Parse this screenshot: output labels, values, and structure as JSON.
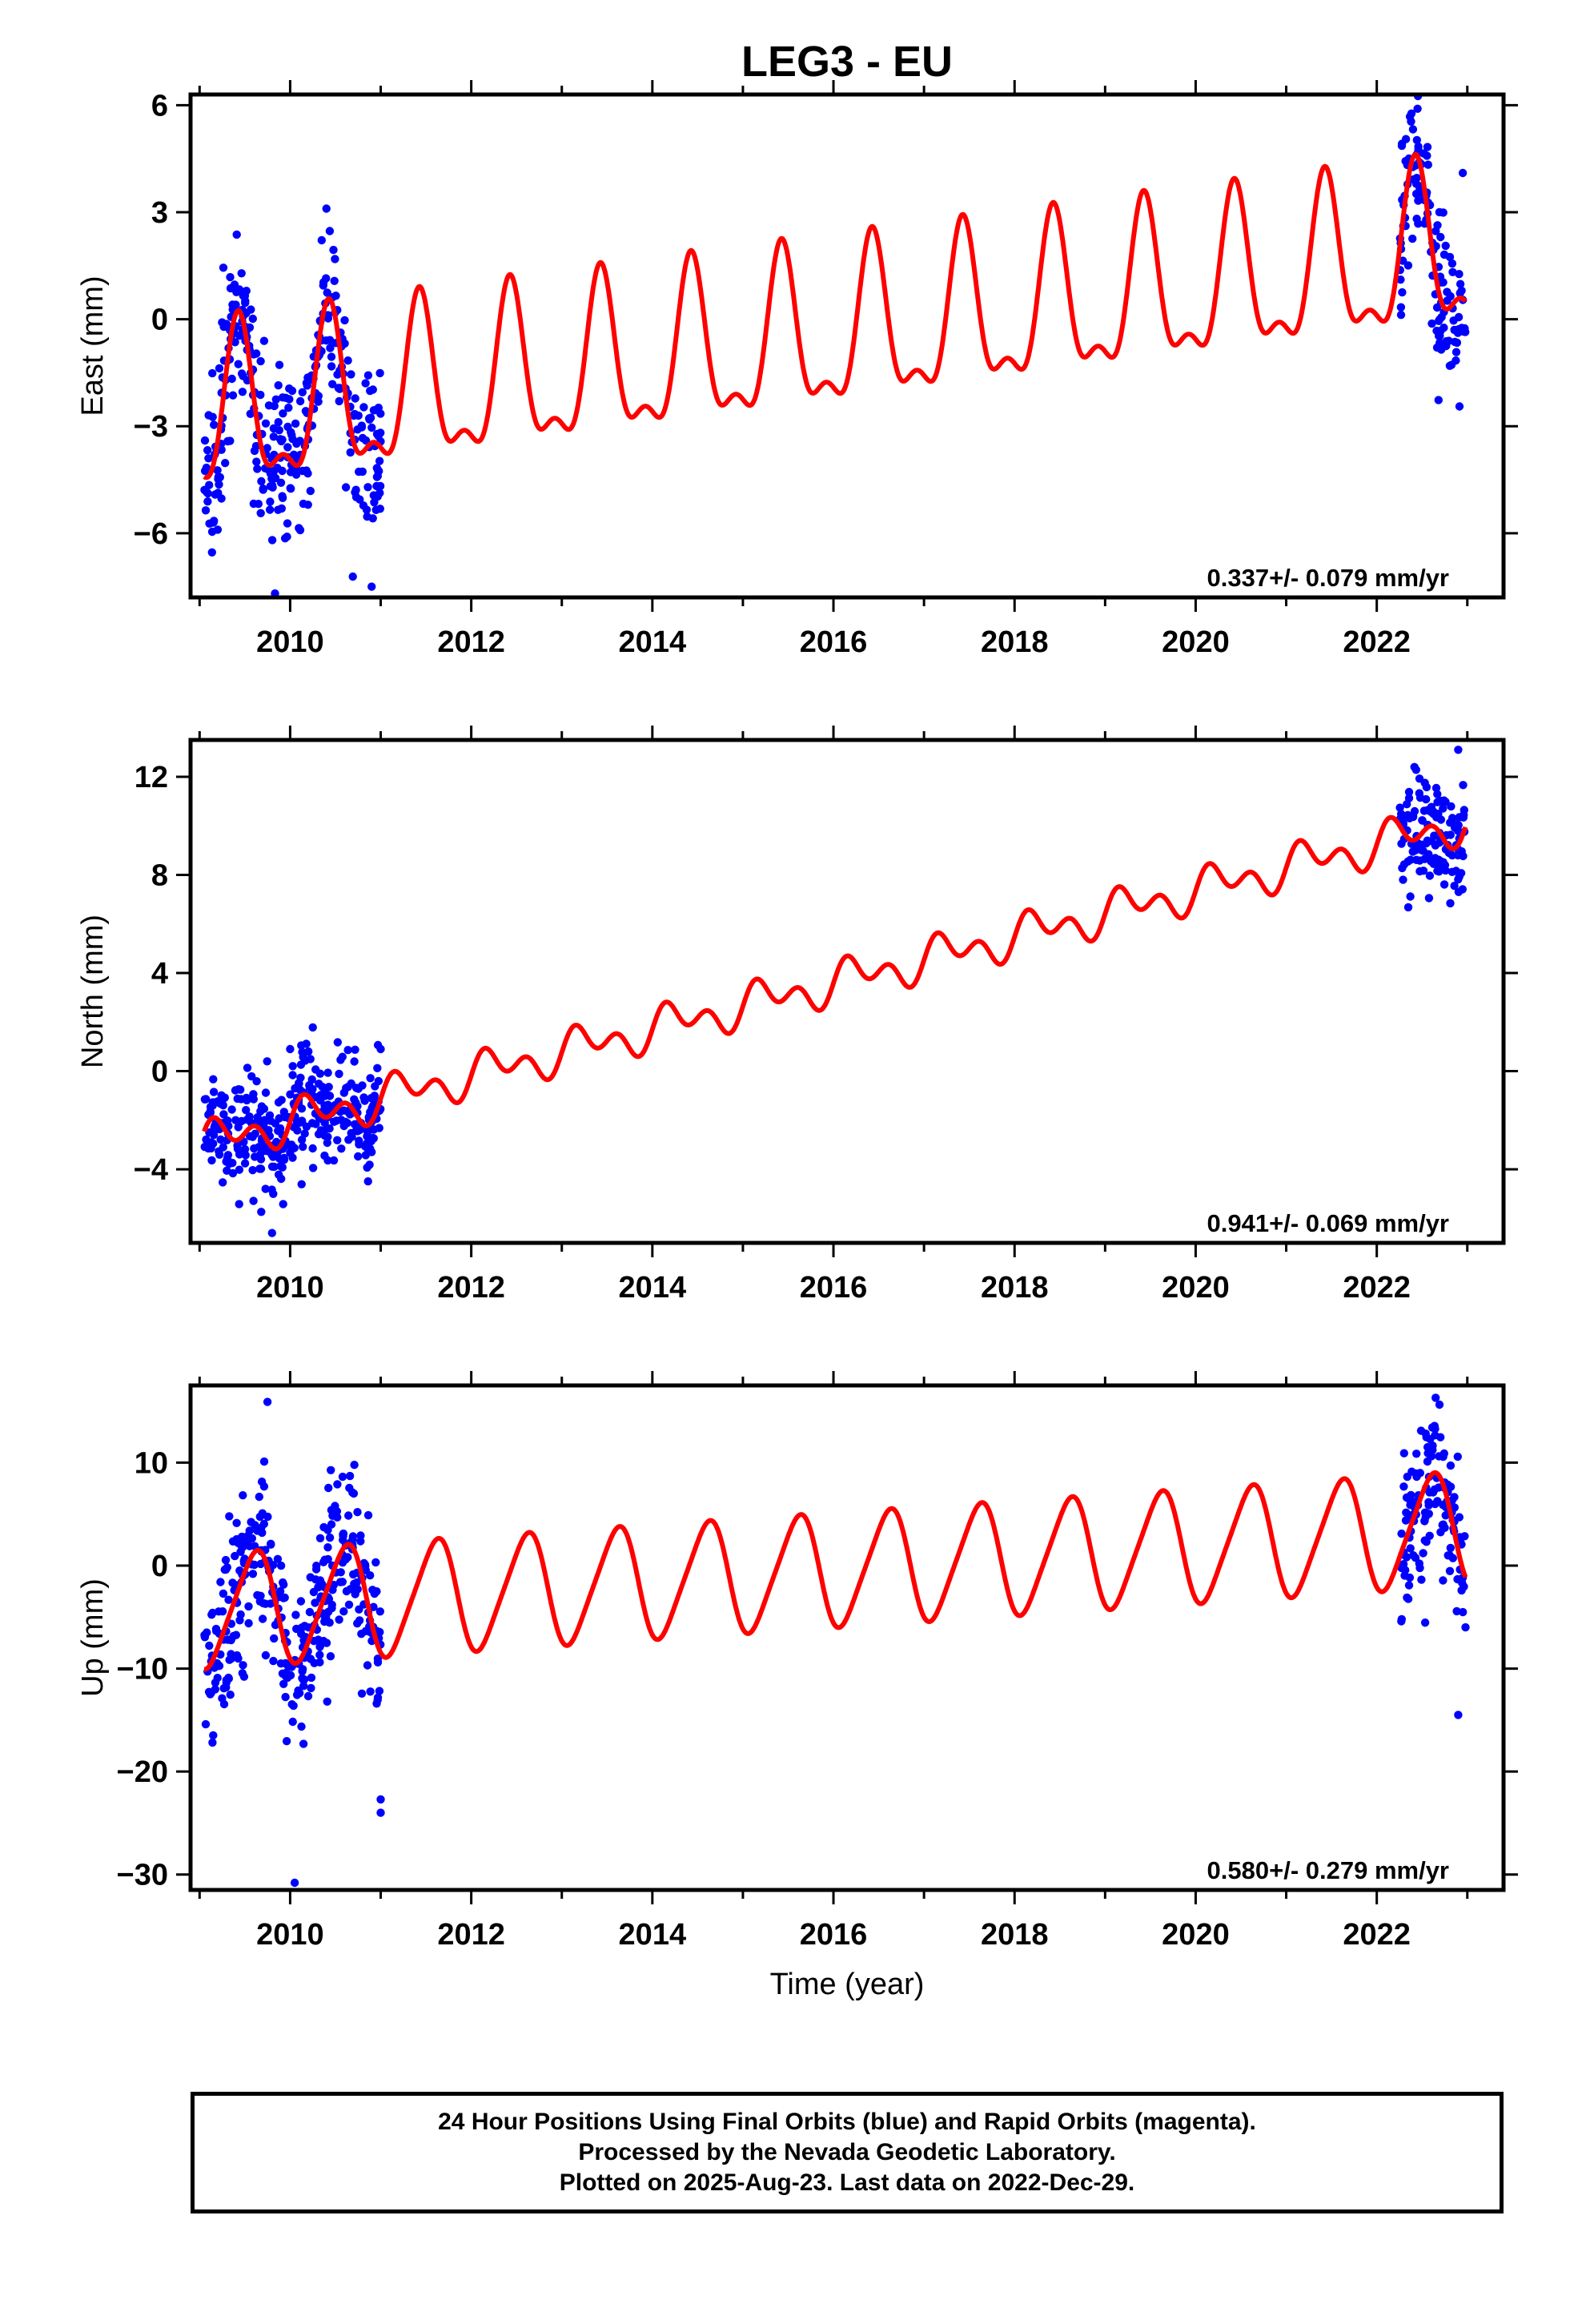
{
  "title": "LEG3 - EU",
  "colors": {
    "observations": "#0000ff",
    "model": "#ff0000",
    "axes": "#000000"
  },
  "chart_data": [
    {
      "type": "scatter",
      "panel": "east",
      "ylabel": "East (mm)",
      "xlabel": "",
      "xlim": [
        2008.9,
        2023.4
      ],
      "ylim": [
        -7.8,
        6.3
      ],
      "xticks": [
        2010,
        2012,
        2014,
        2016,
        2018,
        2020,
        2022
      ],
      "yticks": [
        -6,
        -3,
        0,
        3,
        6
      ],
      "annotation": "0.337+/- 0.079 mm/yr",
      "model": {
        "intercept": -2.9,
        "rate": 0.337,
        "amp_annual": 2.1,
        "phase_annual": 0.18,
        "amp_semi": 0.9,
        "phase_semi": 0.3
      },
      "series": [
        {
          "segments": [
            [
              2009.05,
              2011.0
            ],
            [
              2022.25,
              2022.98
            ]
          ],
          "noise": 1.1,
          "outliers": [
            [
              2009.2,
              -5.9
            ],
            [
              2010.9,
              -7.5
            ],
            [
              2010.4,
              3.1
            ],
            [
              2022.95,
              4.1
            ],
            [
              2022.45,
              5.9
            ]
          ]
        }
      ],
      "grid": false
    },
    {
      "type": "scatter",
      "panel": "north",
      "ylabel": "North (mm)",
      "xlabel": "",
      "xlim": [
        2008.9,
        2023.4
      ],
      "ylim": [
        -7.0,
        13.5
      ],
      "xticks": [
        2010,
        2012,
        2014,
        2016,
        2018,
        2020,
        2022
      ],
      "yticks": [
        -4,
        0,
        4,
        8,
        12
      ],
      "annotation": "0.941+/- 0.069 mm/yr",
      "model": {
        "intercept": -3.0,
        "rate": 0.941,
        "amp_annual": 0.55,
        "phase_annual": 0.0,
        "amp_semi": 0.55,
        "phase_semi": 0.0
      },
      "series": [
        {
          "segments": [
            [
              2009.05,
              2011.0
            ],
            [
              2022.25,
              2022.98
            ]
          ],
          "noise": 1.2,
          "outliers": [
            [
              2009.8,
              -6.6
            ],
            [
              2022.9,
              13.1
            ],
            [
              2010.0,
              0.9
            ],
            [
              2011.0,
              0.9
            ]
          ]
        }
      ],
      "grid": false
    },
    {
      "type": "scatter",
      "panel": "up",
      "ylabel": "Up (mm)",
      "xlabel": "Time (year)",
      "xlim": [
        2008.9,
        2023.4
      ],
      "ylim": [
        -31.5,
        17.5
      ],
      "xticks": [
        2010,
        2012,
        2014,
        2016,
        2018,
        2020,
        2022
      ],
      "yticks": [
        -30,
        -20,
        -10,
        0,
        10
      ],
      "annotation": "0.580+/- 0.279 mm/yr",
      "model": {
        "intercept": -4.5,
        "rate": 0.58,
        "amp_annual": 5.4,
        "phase_annual": 0.35,
        "amp_semi": 0.8,
        "phase_semi": 0.1
      },
      "series": [
        {
          "segments": [
            [
              2009.05,
              2011.0
            ],
            [
              2022.25,
              2022.98
            ]
          ],
          "noise": 4.0,
          "outliers": [
            [
              2010.05,
              -30.8
            ],
            [
              2011.0,
              -24.0
            ],
            [
              2011.0,
              -22.7
            ],
            [
              2009.75,
              15.9
            ],
            [
              2022.9,
              -14.5
            ],
            [
              2022.65,
              16.3
            ]
          ]
        }
      ],
      "grid": false
    }
  ],
  "caption": {
    "line1": "24 Hour Positions Using Final Orbits (blue) and Rapid Orbits (magenta).",
    "line2": "Processed by the Nevada Geodetic Laboratory.",
    "line3": "Plotted on 2025-Aug-23. Last data on 2022-Dec-29."
  }
}
